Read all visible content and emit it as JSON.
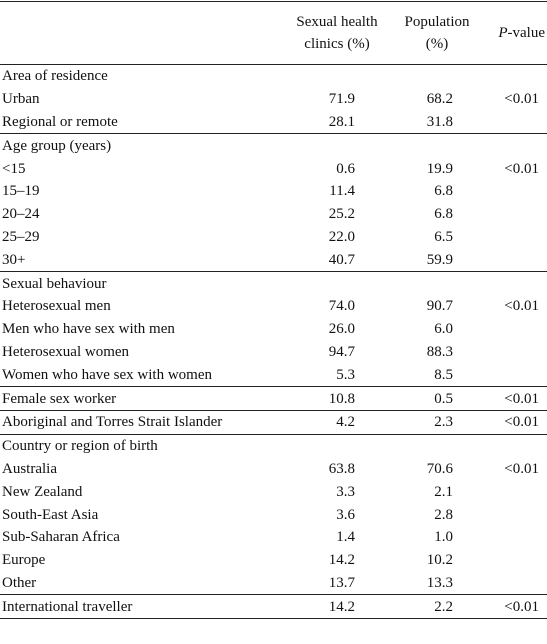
{
  "header": {
    "columns": [
      "Sexual health clinics (%)",
      "Population (%)"
    ],
    "pvalue": [
      "P",
      "-value"
    ]
  },
  "sections": [
    {
      "title": "Area of residence",
      "rows": [
        [
          "Urban",
          "71.9",
          "68.2",
          "<0.01"
        ],
        [
          "Regional or remote",
          "28.1",
          "31.8",
          null
        ]
      ]
    },
    {
      "title": "Age group (years)",
      "rows": [
        [
          "<15",
          "0.6",
          "19.9",
          "<0.01"
        ],
        [
          "15–19",
          "11.4",
          "6.8",
          null
        ],
        [
          "20–24",
          "25.2",
          "6.8",
          null
        ],
        [
          "25–29",
          "22.0",
          "6.5",
          null
        ],
        [
          "30+",
          "40.7",
          "59.9",
          null
        ]
      ]
    },
    {
      "title": "Sexual behaviour",
      "rows": [
        [
          "Heterosexual men",
          "74.0",
          "90.7",
          "<0.01"
        ],
        [
          "Men who have sex with men",
          "26.0",
          "6.0",
          null
        ],
        [
          "Heterosexual women",
          "94.7",
          "88.3",
          null
        ],
        [
          "Women who have sex with women",
          "5.3",
          "8.5",
          null
        ]
      ]
    },
    {
      "title": null,
      "rows": [
        [
          "Female sex worker",
          "10.8",
          "0.5",
          "<0.01"
        ]
      ]
    },
    {
      "title": null,
      "rows": [
        [
          "Aboriginal and Torres Strait Islander",
          "4.2",
          "2.3",
          "<0.01"
        ]
      ]
    },
    {
      "title": "Country or region of birth",
      "rows": [
        [
          "Australia",
          "63.8",
          "70.6",
          "<0.01"
        ],
        [
          "New Zealand",
          "3.3",
          "2.1",
          null
        ],
        [
          "South-East Asia",
          "3.6",
          "2.8",
          null
        ],
        [
          "Sub-Saharan Africa",
          "1.4",
          "1.0",
          null
        ],
        [
          "Europe",
          "14.2",
          "10.2",
          null
        ],
        [
          "Other",
          "13.7",
          "13.3",
          null
        ]
      ]
    },
    {
      "title": null,
      "rows": [
        [
          "International traveller",
          "14.2",
          "2.2",
          "<0.01"
        ]
      ]
    }
  ]
}
